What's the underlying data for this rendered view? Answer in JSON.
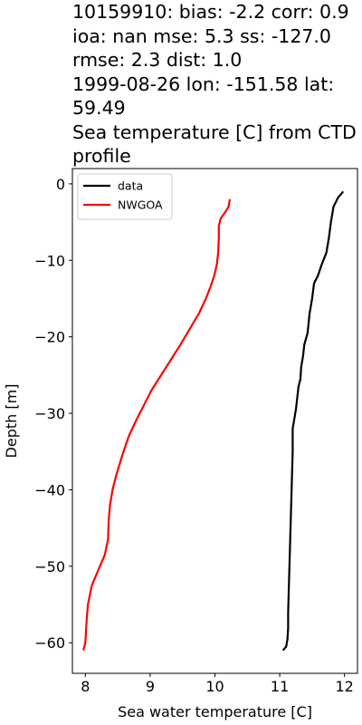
{
  "chart_data": {
    "type": "line",
    "title": "10159910: bias: -2.2  corr: 0.9  ioa: nan  mse: 5.3  ss: -127.0  rmse: 2.3  dist: 1.0\n1999-08-26 lon: -151.58 lat: 59.49\nSea temperature [C] from CTD profile",
    "xlabel": "Sea water temperature [C]",
    "ylabel": "Depth [m]",
    "xlim": [
      7.8,
      12.2
    ],
    "ylim": [
      -64,
      2
    ],
    "xticks": [
      "8",
      "9",
      "10",
      "11",
      "12"
    ],
    "yticks": [
      "0",
      "−10",
      "−20",
      "−30",
      "−40",
      "−50",
      "−60"
    ],
    "xtick_values": [
      8,
      9,
      10,
      11,
      12
    ],
    "ytick_values": [
      0,
      -10,
      -20,
      -30,
      -40,
      -50,
      -60
    ],
    "grid": false,
    "legend_position": "top-left",
    "series": [
      {
        "name": "data",
        "color": "#000000",
        "points": [
          [
            11.98,
            -1
          ],
          [
            11.9,
            -1.8
          ],
          [
            11.83,
            -3
          ],
          [
            11.79,
            -5
          ],
          [
            11.76,
            -7
          ],
          [
            11.72,
            -9
          ],
          [
            11.65,
            -10.5
          ],
          [
            11.59,
            -12
          ],
          [
            11.53,
            -13
          ],
          [
            11.5,
            -15
          ],
          [
            11.46,
            -17
          ],
          [
            11.43,
            -19.5
          ],
          [
            11.38,
            -21
          ],
          [
            11.36,
            -22.5
          ],
          [
            11.33,
            -24
          ],
          [
            11.32,
            -25.5
          ],
          [
            11.29,
            -26.5
          ],
          [
            11.27,
            -28
          ],
          [
            11.25,
            -29.5
          ],
          [
            11.22,
            -31
          ],
          [
            11.2,
            -32
          ],
          [
            11.2,
            -35
          ],
          [
            11.19,
            -38
          ],
          [
            11.18,
            -41
          ],
          [
            11.17,
            -44
          ],
          [
            11.16,
            -47
          ],
          [
            11.15,
            -50
          ],
          [
            11.14,
            -53
          ],
          [
            11.13,
            -56
          ],
          [
            11.13,
            -58
          ],
          [
            11.12,
            -59.5
          ],
          [
            11.1,
            -60.5
          ],
          [
            11.05,
            -61
          ]
        ]
      },
      {
        "name": "NWGOA",
        "color": "#ff0000",
        "points": [
          [
            10.23,
            -2
          ],
          [
            10.21,
            -3
          ],
          [
            10.16,
            -3.7
          ],
          [
            10.09,
            -4.5
          ],
          [
            10.06,
            -5.5
          ],
          [
            10.06,
            -7
          ],
          [
            10.05,
            -9
          ],
          [
            10.03,
            -10.5
          ],
          [
            9.99,
            -12
          ],
          [
            9.93,
            -13.5
          ],
          [
            9.86,
            -15
          ],
          [
            9.75,
            -17
          ],
          [
            9.61,
            -19
          ],
          [
            9.47,
            -21
          ],
          [
            9.32,
            -23
          ],
          [
            9.17,
            -25
          ],
          [
            9.02,
            -27
          ],
          [
            8.9,
            -29
          ],
          [
            8.78,
            -31
          ],
          [
            8.67,
            -33
          ],
          [
            8.57,
            -35.5
          ],
          [
            8.48,
            -38
          ],
          [
            8.42,
            -40
          ],
          [
            8.38,
            -42
          ],
          [
            8.36,
            -44
          ],
          [
            8.35,
            -46.5
          ],
          [
            8.3,
            -48.5
          ],
          [
            8.2,
            -50.5
          ],
          [
            8.1,
            -52.5
          ],
          [
            8.04,
            -55
          ],
          [
            8.02,
            -57
          ],
          [
            8.0,
            -60
          ],
          [
            7.97,
            -61
          ]
        ]
      }
    ]
  }
}
